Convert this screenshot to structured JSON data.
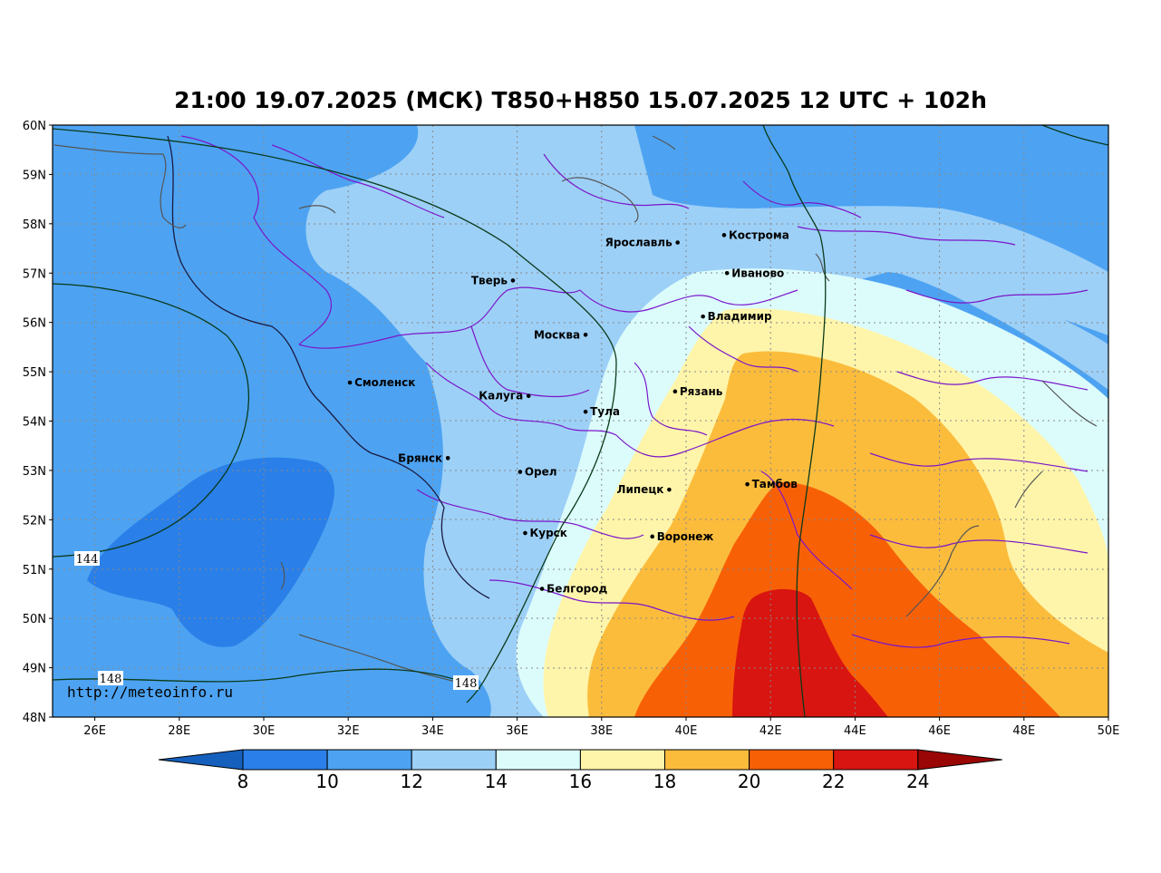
{
  "title": "21:00 19.07.2025 (МСК) T850+H850 15.07.2025 12 UTC + 102h",
  "watermark": "http://meteoinfo.ru",
  "lat_ticks": [
    "60N",
    "59N",
    "58N",
    "57N",
    "56N",
    "55N",
    "54N",
    "53N",
    "52N",
    "51N",
    "50N",
    "49N",
    "48N"
  ],
  "lon_ticks": [
    "26E",
    "28E",
    "30E",
    "32E",
    "34E",
    "36E",
    "38E",
    "40E",
    "42E",
    "44E",
    "46E",
    "48E",
    "50E"
  ],
  "extent": {
    "lon_min": 25,
    "lon_max": 50,
    "lat_min": 48,
    "lat_max": 60
  },
  "cities": [
    {
      "name": "Кострома",
      "lon": 40.9,
      "lat": 57.77,
      "side": "right"
    },
    {
      "name": "Ярославль",
      "lon": 39.8,
      "lat": 57.62,
      "side": "left"
    },
    {
      "name": "Иваново",
      "lon": 40.97,
      "lat": 57.0,
      "side": "right"
    },
    {
      "name": "Тверь",
      "lon": 35.9,
      "lat": 56.85,
      "side": "left"
    },
    {
      "name": "Владимир",
      "lon": 40.4,
      "lat": 56.12,
      "side": "right"
    },
    {
      "name": "Москва",
      "lon": 37.62,
      "lat": 55.75,
      "side": "left"
    },
    {
      "name": "Смоленск",
      "lon": 32.04,
      "lat": 54.78,
      "side": "right"
    },
    {
      "name": "Калуга",
      "lon": 36.27,
      "lat": 54.51,
      "side": "left"
    },
    {
      "name": "Рязань",
      "lon": 39.74,
      "lat": 54.6,
      "side": "right"
    },
    {
      "name": "Тула",
      "lon": 37.62,
      "lat": 54.19,
      "side": "right"
    },
    {
      "name": "Брянск",
      "lon": 34.36,
      "lat": 53.25,
      "side": "left"
    },
    {
      "name": "Орел",
      "lon": 36.07,
      "lat": 52.97,
      "side": "right"
    },
    {
      "name": "Липецк",
      "lon": 39.6,
      "lat": 52.61,
      "side": "left"
    },
    {
      "name": "Тамбов",
      "lon": 41.45,
      "lat": 52.72,
      "side": "right"
    },
    {
      "name": "Курск",
      "lon": 36.19,
      "lat": 51.73,
      "side": "right"
    },
    {
      "name": "Воронеж",
      "lon": 39.2,
      "lat": 51.66,
      "side": "right"
    },
    {
      "name": "Белгород",
      "lon": 36.59,
      "lat": 50.6,
      "side": "right"
    }
  ],
  "contour_labels": [
    "144",
    "148",
    "148"
  ],
  "colorbar": {
    "ticks": [
      "8",
      "10",
      "12",
      "14",
      "16",
      "18",
      "20",
      "22",
      "24"
    ],
    "colors": [
      "#1560bd",
      "#2a7fe8",
      "#4da3f2",
      "#9dd0f7",
      "#dcfcfc",
      "#fff5aa",
      "#fbbc3c",
      "#f86006",
      "#d81510",
      "#9a0505"
    ]
  },
  "field_colors": {
    "c10": "#2a7fe8",
    "c12": "#4da3f2",
    "c14": "#9dd0f7",
    "c16": "#dcfcfc",
    "c18": "#fff5aa",
    "c20": "#fbbc3c",
    "c22": "#f86006",
    "c24": "#d81510"
  }
}
